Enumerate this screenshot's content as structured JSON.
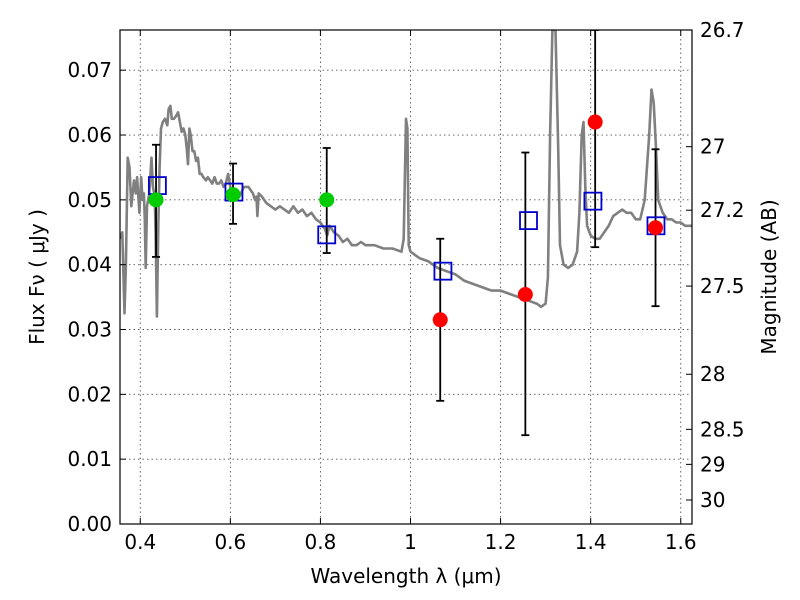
{
  "chart_data": {
    "type": "scatter",
    "xlabel": "Wavelength  λ (μm)",
    "ylabel": "Flux  Fν  ( μJy )",
    "ylabel_right": "Magnitude (AB)",
    "xlim": [
      0.355,
      1.625
    ],
    "ylim": [
      0.0,
      0.0762
    ],
    "grid": true,
    "x_ticks": [
      "0.4",
      "0.6",
      "0.8",
      "1",
      "1.2",
      "1.4",
      "1.6"
    ],
    "y_ticks": [
      "0.00",
      "0.01",
      "0.02",
      "0.03",
      "0.04",
      "0.05",
      "0.06",
      "0.07"
    ],
    "right_ticks": [
      {
        "label": "26.7",
        "flux": 0.0762
      },
      {
        "label": "27",
        "flux": 0.0582
      },
      {
        "label": "27.2",
        "flux": 0.0484
      },
      {
        "label": "27.5",
        "flux": 0.0367
      },
      {
        "label": "28",
        "flux": 0.0231
      },
      {
        "label": "28.5",
        "flux": 0.0146
      },
      {
        "label": "29",
        "flux": 0.0092
      },
      {
        "label": "30",
        "flux": 0.0037
      }
    ],
    "series": [
      {
        "kind": "line",
        "color": "#808080",
        "points": [
          [
            0.355,
            0.044
          ],
          [
            0.36,
            0.045
          ],
          [
            0.365,
            0.0325
          ],
          [
            0.368,
            0.04
          ],
          [
            0.372,
            0.0565
          ],
          [
            0.376,
            0.055
          ],
          [
            0.38,
            0.049
          ],
          [
            0.386,
            0.053
          ],
          [
            0.39,
            0.051
          ],
          [
            0.393,
            0.0535
          ],
          [
            0.398,
            0.048
          ],
          [
            0.402,
            0.0535
          ],
          [
            0.405,
            0.05
          ],
          [
            0.408,
            0.051
          ],
          [
            0.41,
            0.047
          ],
          [
            0.412,
            0.0395
          ],
          [
            0.415,
            0.049
          ],
          [
            0.42,
            0.051
          ],
          [
            0.425,
            0.0565
          ],
          [
            0.428,
            0.052
          ],
          [
            0.432,
            0.0505
          ],
          [
            0.434,
            0.045
          ],
          [
            0.437,
            0.032
          ],
          [
            0.44,
            0.046
          ],
          [
            0.443,
            0.055
          ],
          [
            0.446,
            0.061
          ],
          [
            0.45,
            0.062
          ],
          [
            0.455,
            0.0625
          ],
          [
            0.46,
            0.0615
          ],
          [
            0.463,
            0.064
          ],
          [
            0.467,
            0.0645
          ],
          [
            0.47,
            0.0625
          ],
          [
            0.475,
            0.0625
          ],
          [
            0.48,
            0.063
          ],
          [
            0.484,
            0.0635
          ],
          [
            0.488,
            0.062
          ],
          [
            0.492,
            0.0605
          ],
          [
            0.496,
            0.061
          ],
          [
            0.5,
            0.06
          ],
          [
            0.503,
            0.058
          ],
          [
            0.506,
            0.0555
          ],
          [
            0.509,
            0.061
          ],
          [
            0.512,
            0.06
          ],
          [
            0.516,
            0.0575
          ],
          [
            0.52,
            0.0575
          ],
          [
            0.524,
            0.056
          ],
          [
            0.528,
            0.0565
          ],
          [
            0.532,
            0.054
          ],
          [
            0.536,
            0.054
          ],
          [
            0.54,
            0.0535
          ],
          [
            0.546,
            0.053
          ],
          [
            0.55,
            0.0535
          ],
          [
            0.555,
            0.053
          ],
          [
            0.56,
            0.0525
          ],
          [
            0.565,
            0.0535
          ],
          [
            0.57,
            0.0525
          ],
          [
            0.575,
            0.0525
          ],
          [
            0.58,
            0.053
          ],
          [
            0.585,
            0.052
          ],
          [
            0.59,
            0.0525
          ],
          [
            0.595,
            0.054
          ],
          [
            0.6,
            0.052
          ],
          [
            0.61,
            0.0505
          ],
          [
            0.62,
            0.0505
          ],
          [
            0.63,
            0.052
          ],
          [
            0.64,
            0.052
          ],
          [
            0.65,
            0.051
          ],
          [
            0.655,
            0.05
          ],
          [
            0.658,
            0.0505
          ],
          [
            0.66,
            0.0475
          ],
          [
            0.663,
            0.051
          ],
          [
            0.67,
            0.0505
          ],
          [
            0.68,
            0.0495
          ],
          [
            0.69,
            0.049
          ],
          [
            0.7,
            0.0485
          ],
          [
            0.71,
            0.049
          ],
          [
            0.72,
            0.0485
          ],
          [
            0.73,
            0.048
          ],
          [
            0.74,
            0.049
          ],
          [
            0.75,
            0.048
          ],
          [
            0.76,
            0.0485
          ],
          [
            0.77,
            0.0475
          ],
          [
            0.78,
            0.048
          ],
          [
            0.79,
            0.047
          ],
          [
            0.8,
            0.0465
          ],
          [
            0.81,
            0.0455
          ],
          [
            0.815,
            0.0445
          ],
          [
            0.82,
            0.046
          ],
          [
            0.83,
            0.045
          ],
          [
            0.84,
            0.0445
          ],
          [
            0.85,
            0.0435
          ],
          [
            0.86,
            0.044
          ],
          [
            0.87,
            0.043
          ],
          [
            0.88,
            0.043
          ],
          [
            0.89,
            0.0435
          ],
          [
            0.9,
            0.043
          ],
          [
            0.92,
            0.043
          ],
          [
            0.94,
            0.0425
          ],
          [
            0.96,
            0.0425
          ],
          [
            0.98,
            0.042
          ],
          [
            0.985,
            0.044
          ],
          [
            0.99,
            0.0625
          ],
          [
            0.993,
            0.061
          ],
          [
            0.996,
            0.043
          ],
          [
            1.0,
            0.042
          ],
          [
            1.02,
            0.041
          ],
          [
            1.04,
            0.0405
          ],
          [
            1.06,
            0.0395
          ],
          [
            1.08,
            0.039
          ],
          [
            1.1,
            0.0385
          ],
          [
            1.12,
            0.0375
          ],
          [
            1.14,
            0.037
          ],
          [
            1.16,
            0.0365
          ],
          [
            1.18,
            0.036
          ],
          [
            1.2,
            0.036
          ],
          [
            1.22,
            0.0355
          ],
          [
            1.24,
            0.035
          ],
          [
            1.26,
            0.0345
          ],
          [
            1.28,
            0.034
          ],
          [
            1.29,
            0.0335
          ],
          [
            1.3,
            0.034
          ],
          [
            1.305,
            0.038
          ],
          [
            1.31,
            0.06
          ],
          [
            1.315,
            0.0762
          ],
          [
            1.322,
            0.0762
          ],
          [
            1.328,
            0.058
          ],
          [
            1.332,
            0.043
          ],
          [
            1.34,
            0.04
          ],
          [
            1.35,
            0.0395
          ],
          [
            1.36,
            0.04
          ],
          [
            1.37,
            0.042
          ],
          [
            1.375,
            0.048
          ],
          [
            1.38,
            0.06
          ],
          [
            1.384,
            0.062
          ],
          [
            1.388,
            0.052
          ],
          [
            1.392,
            0.046
          ],
          [
            1.4,
            0.0445
          ],
          [
            1.41,
            0.044
          ],
          [
            1.42,
            0.044
          ],
          [
            1.43,
            0.045
          ],
          [
            1.44,
            0.046
          ],
          [
            1.45,
            0.0475
          ],
          [
            1.46,
            0.048
          ],
          [
            1.47,
            0.0485
          ],
          [
            1.48,
            0.048
          ],
          [
            1.49,
            0.048
          ],
          [
            1.5,
            0.047
          ],
          [
            1.51,
            0.047
          ],
          [
            1.52,
            0.05
          ],
          [
            1.53,
            0.06
          ],
          [
            1.535,
            0.067
          ],
          [
            1.54,
            0.065
          ],
          [
            1.545,
            0.058
          ],
          [
            1.55,
            0.05
          ],
          [
            1.56,
            0.048
          ],
          [
            1.57,
            0.047
          ],
          [
            1.58,
            0.047
          ],
          [
            1.59,
            0.0465
          ],
          [
            1.6,
            0.0465
          ],
          [
            1.61,
            0.046
          ],
          [
            1.625,
            0.046
          ]
        ]
      },
      {
        "kind": "open-square",
        "color": "#0000cc",
        "points": [
          [
            0.438,
            0.0522
          ],
          [
            0.608,
            0.0512
          ],
          [
            0.814,
            0.0446
          ],
          [
            1.072,
            0.039
          ],
          [
            1.262,
            0.0468
          ],
          [
            1.405,
            0.0498
          ],
          [
            1.545,
            0.046
          ]
        ]
      },
      {
        "kind": "filled-circle",
        "color": "#00cc00",
        "points": [
          [
            0.435,
            0.05
          ],
          [
            0.606,
            0.0508
          ],
          [
            0.814,
            0.05
          ]
        ]
      },
      {
        "kind": "filled-circle",
        "color": "#ff0000",
        "points": [
          [
            1.066,
            0.0315
          ],
          [
            1.255,
            0.0354
          ],
          [
            1.41,
            0.062
          ],
          [
            1.544,
            0.0457
          ]
        ]
      },
      {
        "kind": "errorbar",
        "color": "#000000",
        "points": [
          {
            "x": 0.435,
            "low": 0.0412,
            "high": 0.0585
          },
          {
            "x": 0.606,
            "low": 0.0463,
            "high": 0.0556
          },
          {
            "x": 0.814,
            "low": 0.0418,
            "high": 0.058
          },
          {
            "x": 1.066,
            "low": 0.019,
            "high": 0.044
          },
          {
            "x": 1.255,
            "low": 0.0137,
            "high": 0.0573
          },
          {
            "x": 1.41,
            "low": 0.0427,
            "high": 0.0762
          },
          {
            "x": 1.544,
            "low": 0.0336,
            "high": 0.0578
          }
        ]
      }
    ]
  }
}
